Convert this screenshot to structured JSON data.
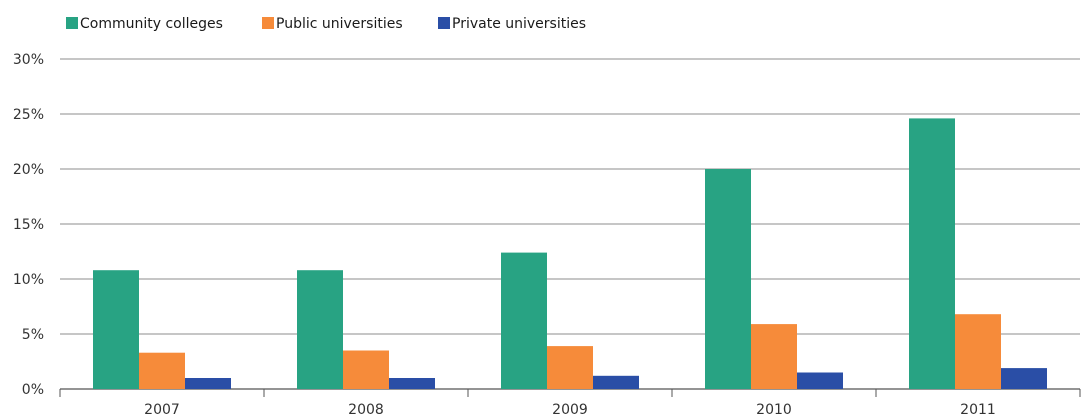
{
  "chart_data": {
    "type": "bar",
    "categories": [
      "2007",
      "2008",
      "2009",
      "2010",
      "2011"
    ],
    "series": [
      {
        "name": "Community colleges",
        "color": "#28a383",
        "values": [
          10.8,
          10.8,
          12.4,
          20.0,
          24.6
        ]
      },
      {
        "name": "Public universities",
        "color": "#f68b3a",
        "values": [
          3.3,
          3.5,
          3.9,
          5.9,
          6.8
        ]
      },
      {
        "name": "Private universities",
        "color": "#2a4ea6",
        "values": [
          1.0,
          1.0,
          1.2,
          1.5,
          1.9
        ]
      }
    ],
    "ylim": [
      0,
      30
    ],
    "yticks": [
      "0%",
      "5%",
      "10%",
      "15%",
      "20%",
      "25%",
      "30%"
    ],
    "grid": true,
    "legend": "top-left",
    "title": "",
    "xlabel": "",
    "ylabel": ""
  }
}
